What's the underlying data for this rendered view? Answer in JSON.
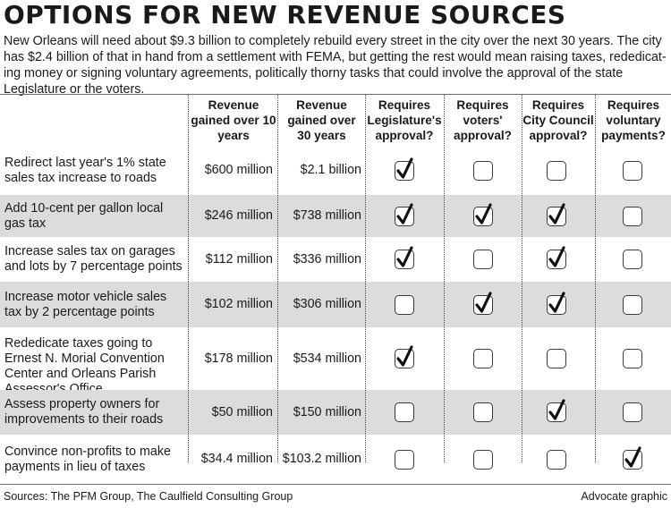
{
  "title": "OPTIONS FOR NEW REVENUE SOURCES",
  "intro": "New Orleans will need about $9.3 billion to completely rebuild every street in the city over the next 30 years. The city has $2.4 billion of that in hand from a settlement with FEMA, but getting the rest would mean raising taxes, rededicat-ing money or signing voluntary agreements, politically thorny tasks that could involve the approval of the state Legislature or the voters.",
  "headers": [
    "Revenue gained over 10 years",
    "Revenue gained over 30 years",
    "Requires Legislature's approval?",
    "Requires voters' approval?",
    "Requires City Council approval?",
    "Requires voluntary payments?"
  ],
  "chart_data": {
    "type": "table",
    "columns": [
      "Revenue gained over 10 years",
      "Revenue gained over 30 years",
      "Requires Legislature's approval?",
      "Requires voters' approval?",
      "Requires City Council approval?",
      "Requires voluntary payments?"
    ],
    "rows": [
      {
        "label": "Redirect last year's 1% state sales tax increase to roads",
        "rev10": "$600 million",
        "rev30": "$2.1 billion",
        "checks": [
          true,
          false,
          false,
          false
        ]
      },
      {
        "label": "Add 10-cent per gallon local gas tax",
        "rev10": "$246 million",
        "rev30": "$738 million",
        "checks": [
          true,
          true,
          true,
          false
        ]
      },
      {
        "label": "Increase sales tax on garages and lots by 7 percentage points",
        "rev10": "$112 million",
        "rev30": "$336 million",
        "checks": [
          true,
          false,
          true,
          false
        ]
      },
      {
        "label": "Increase motor vehicle sales tax by 2 percentage points",
        "rev10": "$102 million",
        "rev30": "$306 million",
        "checks": [
          false,
          true,
          true,
          false
        ]
      },
      {
        "label": "Rededicate taxes going to Ernest N. Morial Convention Center and Orleans Parish Assessor's Office",
        "rev10": "$178 million",
        "rev30": "$534 million",
        "checks": [
          true,
          false,
          false,
          false
        ]
      },
      {
        "label": "Assess property owners for improvements to their roads",
        "rev10": "$50 million",
        "rev30": "$150 million",
        "checks": [
          false,
          false,
          true,
          false
        ]
      },
      {
        "label": "Convince non-profits to make payments in lieu of taxes",
        "rev10": "$34.4 million",
        "rev30": "$103.2 million",
        "checks": [
          false,
          false,
          false,
          true
        ]
      }
    ]
  },
  "sources": "Sources: The PFM Group, The Caulfield Consulting Group",
  "credit": "Advocate graphic",
  "colors": {
    "shade": "#dcdcdc",
    "text": "#1a1a1a",
    "check": "#111111"
  }
}
